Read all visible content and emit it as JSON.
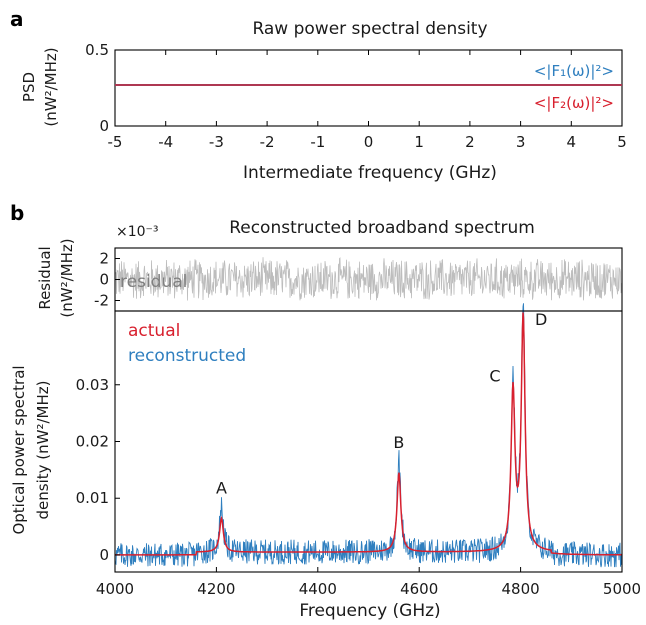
{
  "panel_a": {
    "label": "a",
    "title": "Raw power spectral density",
    "ylabel_line1": "PSD",
    "ylabel_line2": "(nW²/MHz)",
    "xlabel": "Intermediate frequency (GHz)",
    "legend_f1": "<|F₁(ω)|²>",
    "legend_f2": "<|F₂(ω)|²>"
  },
  "panel_b": {
    "label": "b",
    "title": "Reconstructed broadband spectrum",
    "exponent_label": "×10⁻³",
    "residual_ylabel_line1": "Residual",
    "residual_ylabel_line2": "(nW²/MHz)",
    "residual_text": "residual",
    "main_ylabel_line1": "Optical power spectral",
    "main_ylabel_line2": "density (nW²/MHz)",
    "xlabel": "Frequency (GHz)",
    "legend_actual": "actual",
    "legend_reconstructed": "reconstructed"
  },
  "colors": {
    "actual": "#d8202e",
    "reconstructed": "#2f7fbf",
    "residual": "#bdbdbd",
    "residual_text": "#7f7f7f",
    "f1": "#2f7fbf",
    "f2": "#d8202e"
  },
  "chart_data": [
    {
      "id": "raw_psd",
      "type": "line",
      "title": "Raw power spectral density",
      "xlabel": "Intermediate frequency (GHz)",
      "ylabel": "PSD (nW²/MHz)",
      "xlim": [
        -5,
        5
      ],
      "ylim": [
        0,
        0.5
      ],
      "xticks": [
        -5,
        -4,
        -3,
        -2,
        -1,
        0,
        1,
        2,
        3,
        4,
        5
      ],
      "yticks": [
        0,
        0.5
      ],
      "series": [
        {
          "name": "<|F₁(ω)|²>",
          "x": [
            -5,
            5
          ],
          "y": [
            0.27,
            0.27
          ]
        },
        {
          "name": "<|F₂(ω)|²>",
          "x": [
            -5,
            5
          ],
          "y": [
            0.27,
            0.27
          ]
        }
      ]
    },
    {
      "id": "residual",
      "type": "line",
      "ylabel": "Residual (nW²/MHz)",
      "scale_note": "×10⁻³",
      "xlim": [
        4000,
        5000
      ],
      "ylim": [
        -3,
        3
      ],
      "yticks": [
        -2,
        0,
        2
      ],
      "series": [
        {
          "name": "residual",
          "noise_amplitude": 2.2,
          "mean": 0
        }
      ]
    },
    {
      "id": "spectrum",
      "type": "line",
      "title": "Reconstructed broadband spectrum",
      "xlabel": "Frequency (GHz)",
      "ylabel": "Optical power spectral density (nW²/MHz)",
      "xlim": [
        4000,
        5000
      ],
      "ylim": [
        -0.003,
        0.043
      ],
      "xticks": [
        4000,
        4200,
        4400,
        4600,
        4800,
        5000
      ],
      "yticks": [
        0,
        0.01,
        0.02,
        0.03
      ],
      "peaks": [
        {
          "label": "A",
          "x": 4210,
          "actual": 0.006,
          "reconstructed": 0.008
        },
        {
          "label": "B",
          "x": 4560,
          "actual": 0.014,
          "reconstructed": 0.016
        },
        {
          "label": "C",
          "x": 4785,
          "actual": 0.028,
          "reconstructed": 0.0295
        },
        {
          "label": "D",
          "x": 4805,
          "actual": 0.041,
          "reconstructed": 0.043
        }
      ],
      "band_limits": [
        4160,
        4860
      ],
      "band_floor": 0.0005,
      "series": [
        {
          "name": "actual"
        },
        {
          "name": "reconstructed"
        }
      ]
    }
  ]
}
